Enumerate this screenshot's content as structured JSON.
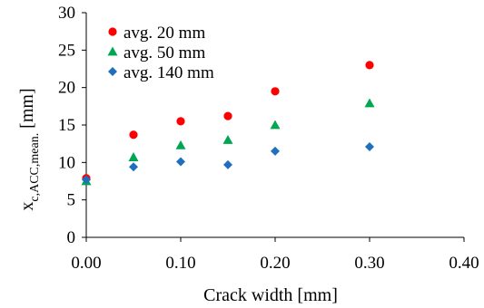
{
  "chart_data": {
    "type": "scatter",
    "xlabel": "Crack width [mm]",
    "ylabel": {
      "main": "x",
      "sub": "c,ACC,mean.",
      "unit": " [mm]"
    },
    "xlim": [
      0,
      0.4
    ],
    "ylim": [
      0,
      30
    ],
    "x_ticks": [
      "0.00",
      "0.10",
      "0.20",
      "0.30",
      "0.40"
    ],
    "y_ticks": [
      "0",
      "5",
      "10",
      "15",
      "20",
      "25",
      "30"
    ],
    "grid": false,
    "legend_position": "top-left",
    "series": [
      {
        "name": "avg. 20 mm",
        "color": "#ff0000",
        "marker": "circle",
        "x": [
          0.0,
          0.05,
          0.1,
          0.15,
          0.2,
          0.3
        ],
        "y": [
          7.9,
          13.7,
          15.5,
          16.2,
          19.5,
          23.0
        ]
      },
      {
        "name": "avg. 50 mm",
        "color": "#00a651",
        "marker": "triangle",
        "x": [
          0.0,
          0.05,
          0.1,
          0.15,
          0.2,
          0.3
        ],
        "y": [
          7.5,
          10.7,
          12.3,
          13.0,
          15.0,
          17.9
        ]
      },
      {
        "name": "avg. 140 mm",
        "color": "#1f6fbf",
        "marker": "diamond",
        "x": [
          0.0,
          0.05,
          0.1,
          0.15,
          0.2,
          0.3
        ],
        "y": [
          7.7,
          9.4,
          10.1,
          9.7,
          11.5,
          12.1
        ]
      }
    ]
  }
}
